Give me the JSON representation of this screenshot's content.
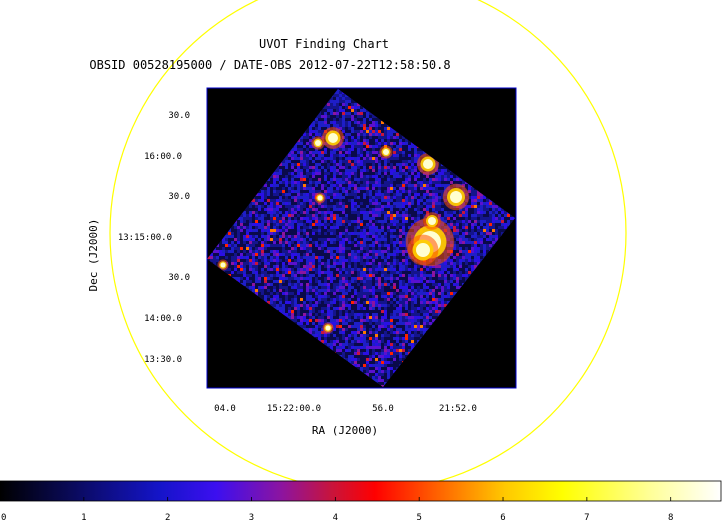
{
  "chart_data": {
    "type": "heatmap",
    "title": "UVOT Finding Chart",
    "subtitle": "OBSID 00528195000 / DATE-OBS 2012-07-22T12:58:50.8",
    "xlabel": "RA (J2000)",
    "ylabel": "Dec (J2000)",
    "x_tick_labels": [
      "04.0",
      "15:22:00.0",
      "56.0",
      "21:52.0"
    ],
    "y_tick_labels": [
      "30.0",
      "16:00.0",
      "30.0",
      "13:15:00.0",
      "30.0",
      "14:00.0",
      "13:30.0"
    ],
    "colorbar": {
      "range": [
        0,
        8.6
      ],
      "tick_labels": [
        "0",
        "1",
        "2",
        "3",
        "4",
        "5",
        "6",
        "7",
        "8"
      ]
    },
    "grid": false,
    "legend": "none"
  }
}
